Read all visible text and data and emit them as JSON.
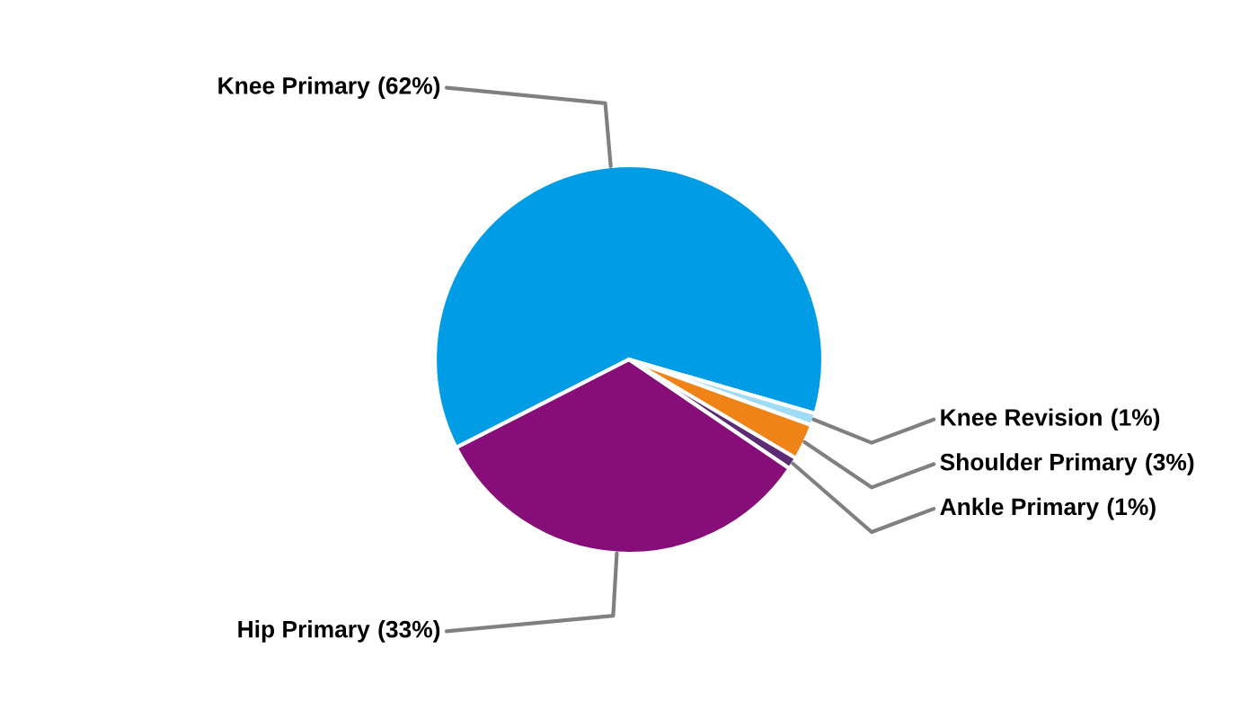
{
  "chart_data": {
    "type": "pie",
    "categories": [
      "Knee Primary",
      "Knee Revision",
      "Shoulder Primary",
      "Ankle Primary",
      "Hip Primary"
    ],
    "values": [
      62,
      1,
      3,
      1,
      33
    ],
    "colors": [
      "#009de6",
      "#9fdcf5",
      "#f08316",
      "#5b2b73",
      "#870e78"
    ],
    "value_labels": [
      "(62%)",
      "(1%)",
      "(3%)",
      "(1%)",
      "(33%)"
    ],
    "legend": false
  }
}
